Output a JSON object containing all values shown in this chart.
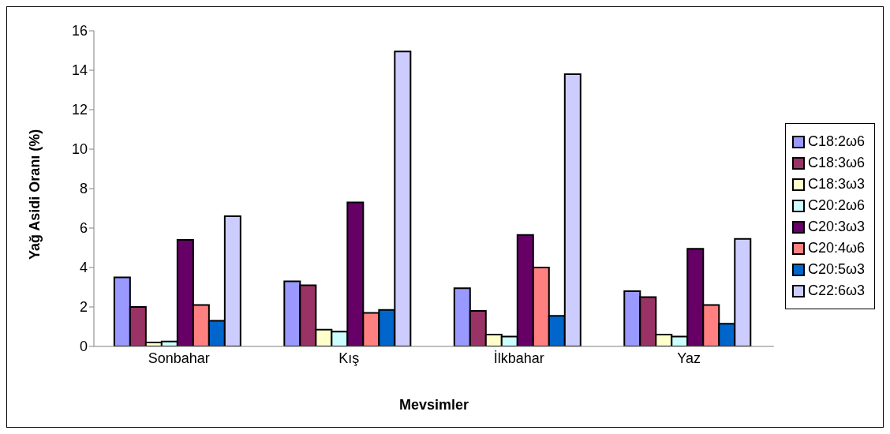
{
  "chart_data": {
    "type": "bar",
    "xlabel": "Mevsimler",
    "ylabel": "Yağ Asidi Oranı (%)",
    "categories": [
      "Sonbahar",
      "Kış",
      "İlkbahar",
      "Yaz"
    ],
    "series": [
      {
        "name": "C18:2ω6",
        "color": "#9999ff",
        "values": [
          3.5,
          3.3,
          2.95,
          2.8
        ]
      },
      {
        "name": "C18:3ω6",
        "color": "#993366",
        "values": [
          2.0,
          3.1,
          1.8,
          2.5
        ]
      },
      {
        "name": "C18:3ω3",
        "color": "#ffffcc",
        "values": [
          0.2,
          0.85,
          0.6,
          0.6
        ]
      },
      {
        "name": "C20:2ω6",
        "color": "#ccffff",
        "values": [
          0.25,
          0.75,
          0.5,
          0.5
        ]
      },
      {
        "name": "C20:3ω3",
        "color": "#660066",
        "values": [
          5.4,
          7.3,
          5.65,
          4.95
        ]
      },
      {
        "name": "C20:4ω6",
        "color": "#ff8080",
        "values": [
          2.1,
          1.7,
          4.0,
          2.1
        ]
      },
      {
        "name": "C20:5ω3",
        "color": "#0066cc",
        "values": [
          1.3,
          1.85,
          1.55,
          1.15
        ]
      },
      {
        "name": "C22:6ω3",
        "color": "#ccccff",
        "values": [
          6.6,
          14.95,
          13.8,
          5.45
        ]
      }
    ],
    "ylim": [
      0,
      16
    ],
    "yticks": [
      0,
      2,
      4,
      6,
      8,
      10,
      12,
      14,
      16
    ],
    "grid": false,
    "legend": "right"
  }
}
